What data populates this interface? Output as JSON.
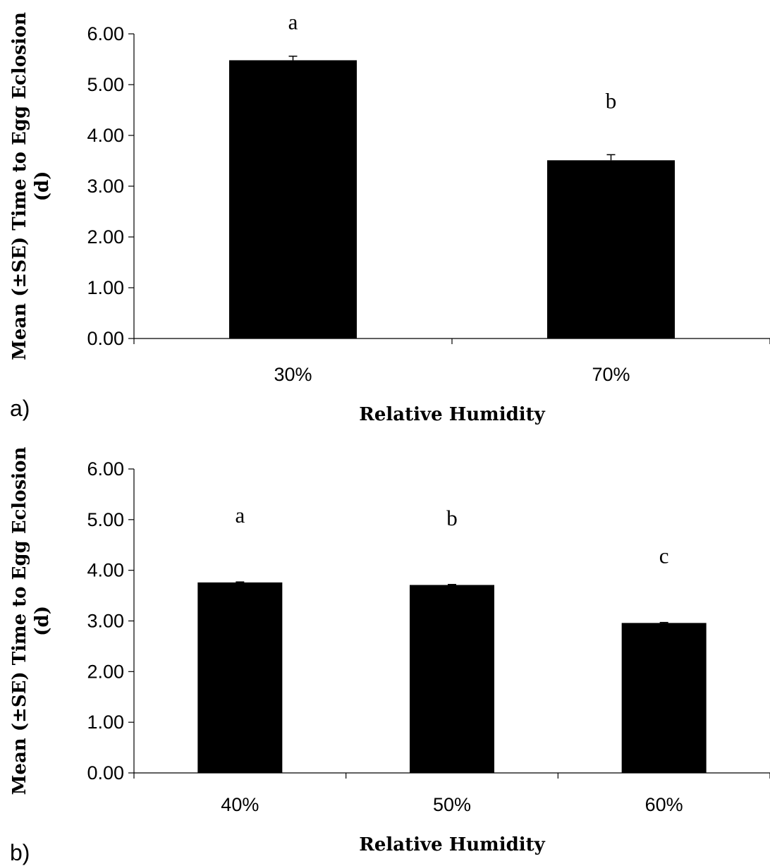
{
  "chart_data": [
    {
      "type": "bar",
      "panel_label": "a)",
      "categories": [
        "30%",
        "70%"
      ],
      "values": [
        5.48,
        3.51
      ],
      "errors": [
        0.08,
        0.11
      ],
      "significance": [
        "a",
        "b"
      ],
      "xlabel": "Relative Humidity",
      "ylabel": "Mean (±SE) Time to Egg Eclosion (d)",
      "ylim": [
        0,
        6
      ],
      "yticks": [
        "0.00",
        "1.00",
        "2.00",
        "3.00",
        "4.00",
        "5.00",
        "6.00"
      ],
      "bar_color": "#000000",
      "grid": false,
      "legend": "none"
    },
    {
      "type": "bar",
      "panel_label": "b)",
      "categories": [
        "40%",
        "50%",
        "60%"
      ],
      "values": [
        3.76,
        3.71,
        2.96
      ],
      "errors": [
        0.01,
        0.01,
        0.01
      ],
      "significance": [
        "a",
        "b",
        "c"
      ],
      "xlabel": "Relative Humidity",
      "ylabel": "Mean (±SE) Time to Egg Eclosion (d)",
      "ylim": [
        0,
        6
      ],
      "yticks": [
        "0.00",
        "1.00",
        "2.00",
        "3.00",
        "4.00",
        "5.00",
        "6.00"
      ],
      "bar_color": "#000000",
      "grid": false,
      "legend": "none"
    }
  ]
}
